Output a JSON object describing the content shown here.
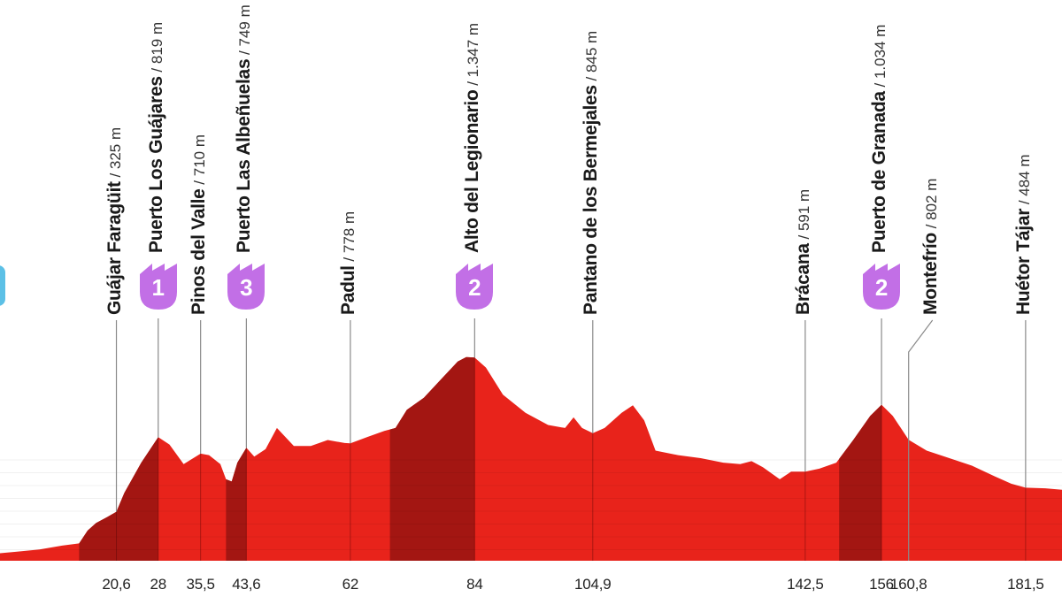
{
  "colors": {
    "profile_fill": "#e8231b",
    "climb_fill": "#a31612",
    "line_color": "#8a8a8a",
    "badge_color": "#c26fe6",
    "start_marker": "#5cc0e6"
  },
  "chart_data": {
    "type": "area",
    "title": "",
    "xlabel": "",
    "ylabel": "",
    "xlim": [
      0,
      188
    ],
    "ylim": [
      0,
      1380
    ],
    "profile": [
      {
        "km": 0,
        "alt": 50
      },
      {
        "km": 3,
        "alt": 60
      },
      {
        "km": 7,
        "alt": 75
      },
      {
        "km": 11,
        "alt": 100
      },
      {
        "km": 14,
        "alt": 115
      },
      {
        "km": 15.5,
        "alt": 200
      },
      {
        "km": 17,
        "alt": 250
      },
      {
        "km": 19,
        "alt": 290
      },
      {
        "km": 20.6,
        "alt": 325
      },
      {
        "km": 22,
        "alt": 450
      },
      {
        "km": 25,
        "alt": 650
      },
      {
        "km": 28,
        "alt": 819
      },
      {
        "km": 30,
        "alt": 770
      },
      {
        "km": 32.5,
        "alt": 640
      },
      {
        "km": 35.5,
        "alt": 710
      },
      {
        "km": 37,
        "alt": 700
      },
      {
        "km": 39,
        "alt": 640
      },
      {
        "km": 40,
        "alt": 540
      },
      {
        "km": 41,
        "alt": 525
      },
      {
        "km": 42,
        "alt": 650
      },
      {
        "km": 43.6,
        "alt": 749
      },
      {
        "km": 45,
        "alt": 690
      },
      {
        "km": 47,
        "alt": 740
      },
      {
        "km": 49,
        "alt": 880
      },
      {
        "km": 52,
        "alt": 760
      },
      {
        "km": 55,
        "alt": 760
      },
      {
        "km": 58,
        "alt": 800
      },
      {
        "km": 61,
        "alt": 780
      },
      {
        "km": 62,
        "alt": 778
      },
      {
        "km": 65,
        "alt": 820
      },
      {
        "km": 68,
        "alt": 860
      },
      {
        "km": 70,
        "alt": 880
      },
      {
        "km": 72,
        "alt": 1000
      },
      {
        "km": 75,
        "alt": 1080
      },
      {
        "km": 78,
        "alt": 1200
      },
      {
        "km": 81,
        "alt": 1320
      },
      {
        "km": 82.5,
        "alt": 1350
      },
      {
        "km": 84,
        "alt": 1347
      },
      {
        "km": 86,
        "alt": 1280
      },
      {
        "km": 89,
        "alt": 1100
      },
      {
        "km": 93,
        "alt": 980
      },
      {
        "km": 97,
        "alt": 900
      },
      {
        "km": 100,
        "alt": 880
      },
      {
        "km": 101.5,
        "alt": 950
      },
      {
        "km": 103,
        "alt": 880
      },
      {
        "km": 104.9,
        "alt": 845
      },
      {
        "km": 107,
        "alt": 880
      },
      {
        "km": 110,
        "alt": 980
      },
      {
        "km": 112,
        "alt": 1030
      },
      {
        "km": 114,
        "alt": 930
      },
      {
        "km": 116,
        "alt": 730
      },
      {
        "km": 120,
        "alt": 700
      },
      {
        "km": 124,
        "alt": 680
      },
      {
        "km": 128,
        "alt": 650
      },
      {
        "km": 131,
        "alt": 640
      },
      {
        "km": 133,
        "alt": 660
      },
      {
        "km": 135,
        "alt": 620
      },
      {
        "km": 138,
        "alt": 540
      },
      {
        "km": 140,
        "alt": 590
      },
      {
        "km": 142.5,
        "alt": 591
      },
      {
        "km": 145,
        "alt": 610
      },
      {
        "km": 148,
        "alt": 650
      },
      {
        "km": 151,
        "alt": 800
      },
      {
        "km": 154,
        "alt": 960
      },
      {
        "km": 156,
        "alt": 1034
      },
      {
        "km": 158,
        "alt": 960
      },
      {
        "km": 160.8,
        "alt": 802
      },
      {
        "km": 164,
        "alt": 730
      },
      {
        "km": 168,
        "alt": 680
      },
      {
        "km": 172,
        "alt": 630
      },
      {
        "km": 176,
        "alt": 560
      },
      {
        "km": 179,
        "alt": 510
      },
      {
        "km": 181.5,
        "alt": 484
      },
      {
        "km": 185,
        "alt": 480
      },
      {
        "km": 188,
        "alt": 470
      }
    ],
    "climb_segments": [
      {
        "from": 14,
        "to": 28
      },
      {
        "from": 40,
        "to": 43.6
      },
      {
        "from": 69,
        "to": 84
      },
      {
        "from": 148.5,
        "to": 156
      }
    ],
    "waypoints": [
      {
        "name": "Guájar Faragüit",
        "alt_label": "325 m",
        "km": 20.6,
        "km_label": "20,6"
      },
      {
        "name": "Puerto Los Guájares",
        "alt_label": "819 m",
        "km": 28,
        "km_label": "28",
        "category": "1"
      },
      {
        "name": "Pinos del Valle",
        "alt_label": "710 m",
        "km": 35.5,
        "km_label": "35,5"
      },
      {
        "name": "Puerto Las Albeñuelas",
        "alt_label": "749 m",
        "km": 43.6,
        "km_label": "43,6",
        "category": "3"
      },
      {
        "name": "Padul",
        "alt_label": "778 m",
        "km": 62,
        "km_label": "62"
      },
      {
        "name": "Alto del Legionario",
        "alt_label": "1.347 m",
        "km": 84,
        "km_label": "84",
        "category": "2"
      },
      {
        "name": "Pantano de los Bermejales",
        "alt_label": "845 m",
        "km": 104.9,
        "km_label": "104,9"
      },
      {
        "name": "Brácana",
        "alt_label": "591 m",
        "km": 142.5,
        "km_label": "142,5"
      },
      {
        "name": "Puerto de Granada",
        "alt_label": "1.034 m",
        "km": 156,
        "km_label": "156",
        "category": "2"
      },
      {
        "name": "Montefrío",
        "alt_label": "802 m",
        "km": 160.8,
        "km_label": "160,8"
      },
      {
        "name": "Huétor Tájar",
        "alt_label": "484 m",
        "km": 181.5,
        "km_label": "181,5"
      }
    ]
  }
}
